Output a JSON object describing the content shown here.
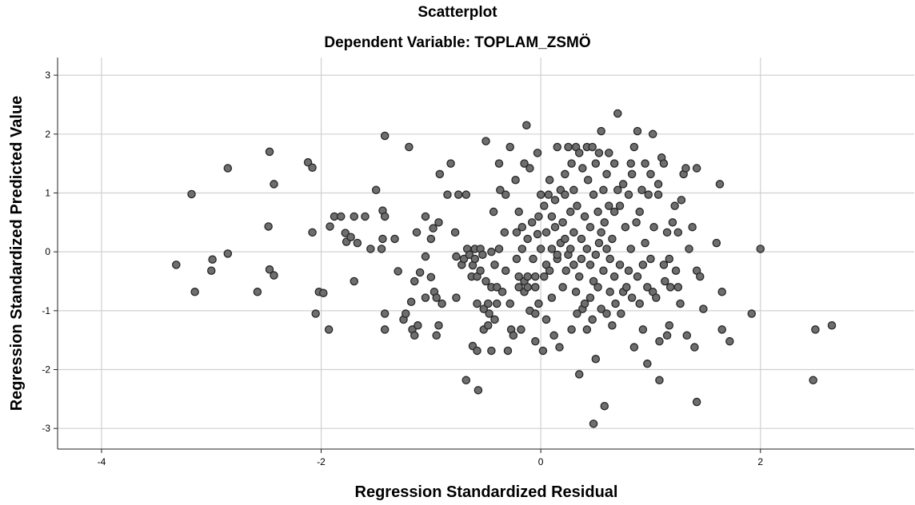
{
  "chart_data": {
    "type": "scatter",
    "title": "Scatterplot",
    "subtitle": "Dependent Variable: TOPLAM_ZSMÖ",
    "xlabel": "Regression Standardized Residual",
    "ylabel": "Regression Standardized Predicted Value",
    "xlim": [
      -4.4,
      3.4
    ],
    "ylim": [
      -3.35,
      3.3
    ],
    "xticks": [
      -4,
      -2,
      0,
      2
    ],
    "yticks": [
      -3,
      -2,
      -1,
      0,
      1,
      2,
      3
    ],
    "grid": true,
    "point_color": "#6e6e6e",
    "point_edge_color": "#262626",
    "grid_color": "#d0d0d0",
    "points": [
      [
        -3.32,
        -0.22
      ],
      [
        -3.18,
        0.98
      ],
      [
        -3.15,
        -0.68
      ],
      [
        -2.99,
        -0.13
      ],
      [
        -3.0,
        -0.32
      ],
      [
        -2.85,
        1.42
      ],
      [
        -2.85,
        -0.03
      ],
      [
        -2.58,
        -0.68
      ],
      [
        -2.48,
        0.43
      ],
      [
        -2.47,
        1.7
      ],
      [
        -2.47,
        -0.3
      ],
      [
        -2.43,
        1.15
      ],
      [
        -2.43,
        -0.4
      ],
      [
        -2.12,
        1.52
      ],
      [
        -2.08,
        1.43
      ],
      [
        -2.08,
        0.33
      ],
      [
        -2.05,
        -1.05
      ],
      [
        -2.02,
        -0.68
      ],
      [
        -1.98,
        -0.7
      ],
      [
        -1.92,
        0.43
      ],
      [
        -1.88,
        0.6
      ],
      [
        -1.93,
        -1.32
      ],
      [
        -1.82,
        0.6
      ],
      [
        -1.78,
        0.32
      ],
      [
        -1.77,
        0.17
      ],
      [
        -1.73,
        0.25
      ],
      [
        -1.7,
        0.6
      ],
      [
        -1.7,
        -0.5
      ],
      [
        -1.67,
        0.15
      ],
      [
        -1.6,
        0.6
      ],
      [
        -1.55,
        0.05
      ],
      [
        -1.5,
        1.05
      ],
      [
        -1.45,
        0.05
      ],
      [
        -1.44,
        0.7
      ],
      [
        -1.44,
        0.22
      ],
      [
        -1.42,
        0.6
      ],
      [
        -1.42,
        -1.05
      ],
      [
        -1.42,
        -1.32
      ],
      [
        -1.42,
        1.97
      ],
      [
        -1.33,
        0.22
      ],
      [
        -1.3,
        -0.33
      ],
      [
        -1.25,
        -1.15
      ],
      [
        -1.23,
        -1.05
      ],
      [
        -1.2,
        1.78
      ],
      [
        -1.18,
        -0.85
      ],
      [
        -1.17,
        -1.32
      ],
      [
        -1.15,
        -0.5
      ],
      [
        -1.15,
        -1.42
      ],
      [
        -1.13,
        0.33
      ],
      [
        -1.12,
        -1.25
      ],
      [
        -1.1,
        -0.35
      ],
      [
        -1.05,
        -0.08
      ],
      [
        -1.05,
        0.6
      ],
      [
        -1.05,
        -0.78
      ],
      [
        -1.0,
        0.22
      ],
      [
        -1.0,
        -0.43
      ],
      [
        -0.98,
        0.4
      ],
      [
        -0.97,
        -0.68
      ],
      [
        -0.95,
        -1.42
      ],
      [
        -0.95,
        -0.78
      ],
      [
        -0.93,
        -1.25
      ],
      [
        -0.93,
        0.5
      ],
      [
        -0.92,
        1.32
      ],
      [
        -0.9,
        -0.88
      ],
      [
        -0.85,
        0.97
      ],
      [
        -0.82,
        1.5
      ],
      [
        -0.78,
        0.33
      ],
      [
        -0.77,
        -0.08
      ],
      [
        -0.77,
        -0.78
      ],
      [
        -0.75,
        0.97
      ],
      [
        -0.72,
        -0.22
      ],
      [
        -0.7,
        -0.12
      ],
      [
        -0.68,
        0.97
      ],
      [
        -0.68,
        -2.18
      ],
      [
        -0.67,
        0.05
      ],
      [
        -0.65,
        -0.05
      ],
      [
        -0.63,
        -0.42
      ],
      [
        -0.62,
        -0.23
      ],
      [
        -0.62,
        -1.6
      ],
      [
        -0.6,
        0.05
      ],
      [
        -0.6,
        -0.12
      ],
      [
        -0.58,
        -0.42
      ],
      [
        -0.58,
        -0.88
      ],
      [
        -0.58,
        -1.68
      ],
      [
        -0.57,
        -2.35
      ],
      [
        -0.55,
        0.05
      ],
      [
        -0.55,
        -0.32
      ],
      [
        -0.53,
        -0.05
      ],
      [
        -0.52,
        -0.97
      ],
      [
        -0.52,
        -1.32
      ],
      [
        -0.5,
        1.88
      ],
      [
        -0.5,
        -0.5
      ],
      [
        -0.48,
        -0.88
      ],
      [
        -0.48,
        -1.25
      ],
      [
        -0.47,
        -1.05
      ],
      [
        -0.45,
        0.0
      ],
      [
        -0.45,
        -0.6
      ],
      [
        -0.45,
        -1.68
      ],
      [
        -0.43,
        0.68
      ],
      [
        -0.42,
        -0.22
      ],
      [
        -0.42,
        -1.15
      ],
      [
        -0.4,
        -0.6
      ],
      [
        -0.4,
        -0.88
      ],
      [
        -0.38,
        0.05
      ],
      [
        -0.38,
        1.5
      ],
      [
        -0.37,
        1.05
      ],
      [
        -0.35,
        -0.68
      ],
      [
        -0.33,
        0.33
      ],
      [
        -0.32,
        -0.32
      ],
      [
        -0.32,
        0.97
      ],
      [
        -0.3,
        -1.68
      ],
      [
        -0.28,
        1.78
      ],
      [
        -0.28,
        -0.88
      ],
      [
        -0.27,
        -1.32
      ],
      [
        -0.25,
        -1.42
      ],
      [
        -0.23,
        1.22
      ],
      [
        -0.22,
        0.33
      ],
      [
        -0.22,
        -0.12
      ],
      [
        -0.2,
        0.68
      ],
      [
        -0.2,
        -0.42
      ],
      [
        -0.2,
        -0.6
      ],
      [
        -0.18,
        -1.32
      ],
      [
        -0.17,
        0.42
      ],
      [
        -0.17,
        0.05
      ],
      [
        -0.15,
        1.5
      ],
      [
        -0.15,
        -0.5
      ],
      [
        -0.15,
        -0.68
      ],
      [
        -0.13,
        2.15
      ],
      [
        -0.12,
        0.22
      ],
      [
        -0.12,
        -0.6
      ],
      [
        -0.12,
        -0.42
      ],
      [
        -0.1,
        1.42
      ],
      [
        -0.1,
        -1.0
      ],
      [
        -0.08,
        0.5
      ],
      [
        -0.07,
        -0.12
      ],
      [
        -0.05,
        -0.42
      ],
      [
        -0.05,
        -0.6
      ],
      [
        -0.05,
        -1.05
      ],
      [
        -0.05,
        -1.52
      ],
      [
        -0.03,
        0.3
      ],
      [
        -0.03,
        1.68
      ],
      [
        -0.02,
        0.6
      ],
      [
        -0.02,
        -0.88
      ],
      [
        0.0,
        0.97
      ],
      [
        0.0,
        0.05
      ],
      [
        0.02,
        -1.68
      ],
      [
        0.03,
        0.78
      ],
      [
        0.03,
        -0.42
      ],
      [
        0.05,
        0.33
      ],
      [
        0.05,
        -0.22
      ],
      [
        0.05,
        -1.15
      ],
      [
        0.07,
        0.97
      ],
      [
        0.08,
        -0.32
      ],
      [
        0.08,
        1.22
      ],
      [
        0.1,
        0.05
      ],
      [
        0.1,
        -0.78
      ],
      [
        0.1,
        0.6
      ],
      [
        0.12,
        -1.42
      ],
      [
        0.13,
        0.88
      ],
      [
        0.13,
        0.42
      ],
      [
        0.15,
        -0.12
      ],
      [
        0.15,
        1.78
      ],
      [
        0.15,
        -0.05
      ],
      [
        0.17,
        -1.62
      ],
      [
        0.18,
        1.05
      ],
      [
        0.18,
        0.15
      ],
      [
        0.2,
        0.5
      ],
      [
        0.2,
        -0.6
      ],
      [
        0.22,
        1.32
      ],
      [
        0.22,
        0.97
      ],
      [
        0.22,
        0.22
      ],
      [
        0.23,
        -0.32
      ],
      [
        0.25,
        1.78
      ],
      [
        0.25,
        -0.05
      ],
      [
        0.27,
        0.05
      ],
      [
        0.27,
        0.68
      ],
      [
        0.28,
        -1.32
      ],
      [
        0.28,
        1.5
      ],
      [
        0.3,
        0.33
      ],
      [
        0.3,
        -0.22
      ],
      [
        0.3,
        1.05
      ],
      [
        0.32,
        1.78
      ],
      [
        0.32,
        -0.68
      ],
      [
        0.33,
        -1.05
      ],
      [
        0.33,
        0.78
      ],
      [
        0.35,
        -0.42
      ],
      [
        0.35,
        1.68
      ],
      [
        0.35,
        -2.08
      ],
      [
        0.37,
        0.22
      ],
      [
        0.37,
        -0.12
      ],
      [
        0.38,
        1.42
      ],
      [
        0.38,
        -0.97
      ],
      [
        0.4,
        0.6
      ],
      [
        0.4,
        -0.88
      ],
      [
        0.42,
        1.78
      ],
      [
        0.42,
        0.05
      ],
      [
        0.42,
        -1.32
      ],
      [
        0.43,
        1.22
      ],
      [
        0.45,
        0.42
      ],
      [
        0.45,
        -0.22
      ],
      [
        0.45,
        -0.78
      ],
      [
        0.47,
        1.78
      ],
      [
        0.47,
        -1.15
      ],
      [
        0.48,
        0.97
      ],
      [
        0.48,
        -0.5
      ],
      [
        0.48,
        -2.92
      ],
      [
        0.5,
        1.5
      ],
      [
        0.5,
        -0.05
      ],
      [
        0.5,
        -1.82
      ],
      [
        0.52,
        0.68
      ],
      [
        0.52,
        -0.6
      ],
      [
        0.53,
        1.68
      ],
      [
        0.53,
        0.15
      ],
      [
        0.55,
        0.33
      ],
      [
        0.55,
        -0.97
      ],
      [
        0.55,
        2.05
      ],
      [
        0.57,
        -0.32
      ],
      [
        0.57,
        1.05
      ],
      [
        0.58,
        -2.62
      ],
      [
        0.58,
        0.5
      ],
      [
        0.6,
        1.32
      ],
      [
        0.6,
        -1.05
      ],
      [
        0.6,
        0.05
      ],
      [
        0.62,
        0.78
      ],
      [
        0.62,
        1.68
      ],
      [
        0.63,
        -0.68
      ],
      [
        0.63,
        -0.12
      ],
      [
        0.65,
        0.22
      ],
      [
        0.65,
        -1.25
      ],
      [
        0.67,
        1.5
      ],
      [
        0.67,
        0.68
      ],
      [
        0.67,
        -0.42
      ],
      [
        0.68,
        -0.88
      ],
      [
        0.7,
        1.05
      ],
      [
        0.7,
        2.35
      ],
      [
        0.72,
        -0.22
      ],
      [
        0.72,
        0.78
      ],
      [
        0.73,
        -1.05
      ],
      [
        0.75,
        1.15
      ],
      [
        0.75,
        -0.68
      ],
      [
        0.77,
        0.42
      ],
      [
        0.78,
        -0.6
      ],
      [
        0.8,
        0.97
      ],
      [
        0.8,
        -0.32
      ],
      [
        0.82,
        1.5
      ],
      [
        0.82,
        0.05
      ],
      [
        0.83,
        1.32
      ],
      [
        0.83,
        -0.78
      ],
      [
        0.85,
        1.78
      ],
      [
        0.85,
        -1.62
      ],
      [
        0.87,
        0.5
      ],
      [
        0.88,
        -0.42
      ],
      [
        0.88,
        2.05
      ],
      [
        0.9,
        0.68
      ],
      [
        0.9,
        -0.88
      ],
      [
        0.92,
        1.05
      ],
      [
        0.93,
        -0.22
      ],
      [
        0.93,
        -1.32
      ],
      [
        0.95,
        1.5
      ],
      [
        0.95,
        0.15
      ],
      [
        0.97,
        -0.6
      ],
      [
        0.97,
        -1.9
      ],
      [
        0.98,
        0.97
      ],
      [
        1.0,
        1.32
      ],
      [
        1.0,
        -0.12
      ],
      [
        1.02,
        -0.68
      ],
      [
        1.02,
        2.0
      ],
      [
        1.03,
        0.42
      ],
      [
        1.05,
        -0.78
      ],
      [
        1.07,
        1.15
      ],
      [
        1.07,
        0.97
      ],
      [
        1.08,
        -1.52
      ],
      [
        1.08,
        -2.18
      ],
      [
        1.1,
        1.6
      ],
      [
        1.12,
        -0.22
      ],
      [
        1.12,
        1.5
      ],
      [
        1.13,
        -0.5
      ],
      [
        1.15,
        0.33
      ],
      [
        1.15,
        -1.42
      ],
      [
        1.17,
        -0.12
      ],
      [
        1.17,
        -1.25
      ],
      [
        1.18,
        -0.6
      ],
      [
        1.2,
        0.5
      ],
      [
        1.22,
        0.78
      ],
      [
        1.23,
        -0.32
      ],
      [
        1.25,
        0.33
      ],
      [
        1.25,
        -0.6
      ],
      [
        1.27,
        -0.88
      ],
      [
        1.28,
        0.88
      ],
      [
        1.3,
        1.32
      ],
      [
        1.32,
        1.42
      ],
      [
        1.33,
        -1.42
      ],
      [
        1.35,
        0.05
      ],
      [
        1.38,
        0.42
      ],
      [
        1.4,
        -1.62
      ],
      [
        1.42,
        1.42
      ],
      [
        1.42,
        -0.32
      ],
      [
        1.42,
        -2.55
      ],
      [
        1.45,
        -0.42
      ],
      [
        1.48,
        -0.97
      ],
      [
        1.6,
        0.15
      ],
      [
        1.63,
        1.15
      ],
      [
        1.65,
        -0.68
      ],
      [
        1.65,
        -1.32
      ],
      [
        1.72,
        -1.52
      ],
      [
        1.92,
        -1.05
      ],
      [
        2.0,
        0.05
      ],
      [
        2.48,
        -2.18
      ],
      [
        2.5,
        -1.32
      ],
      [
        2.65,
        -1.25
      ]
    ]
  }
}
